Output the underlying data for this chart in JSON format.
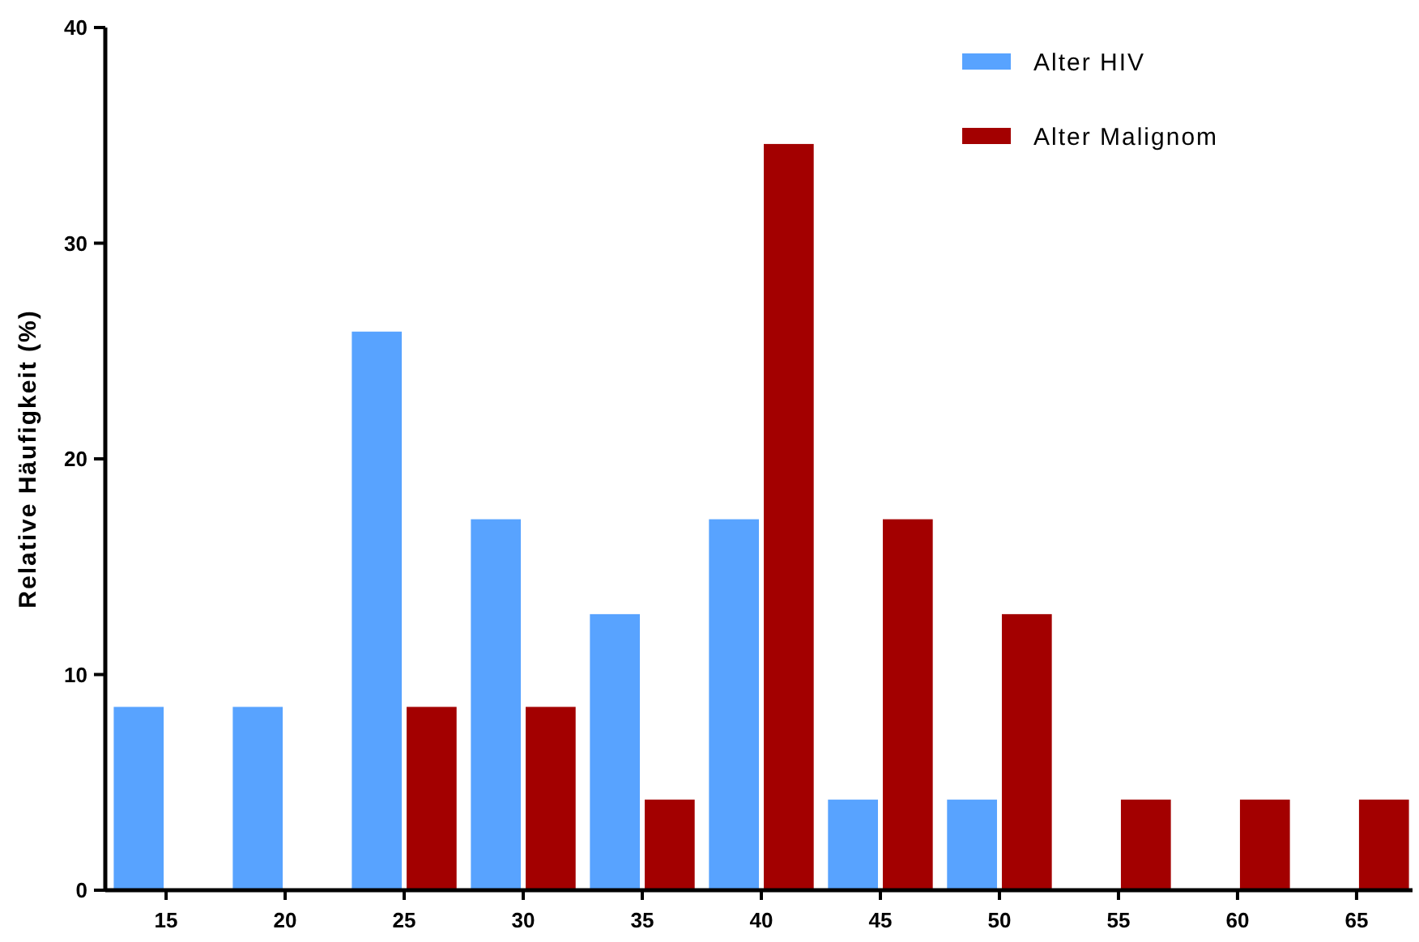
{
  "chart_data": {
    "type": "bar",
    "ylabel": "Relative Häufigkeit (%)",
    "categories": [
      "15",
      "20",
      "25",
      "30",
      "35",
      "40",
      "45",
      "50",
      "55",
      "60",
      "65"
    ],
    "series": [
      {
        "name": "Alter HIV",
        "color": "#58a3ff",
        "values": [
          8.5,
          8.5,
          25.9,
          17.2,
          12.8,
          17.2,
          4.2,
          4.2,
          0,
          0,
          0
        ]
      },
      {
        "name": "Alter Malignom",
        "color": "#a30000",
        "values": [
          0,
          0,
          8.5,
          8.5,
          4.2,
          34.6,
          17.2,
          12.8,
          4.2,
          4.2,
          4.2
        ]
      }
    ],
    "ylim": [
      0,
      40
    ],
    "yticks": [
      0,
      10,
      20,
      30,
      40
    ],
    "grid": false,
    "legend": "top right"
  }
}
